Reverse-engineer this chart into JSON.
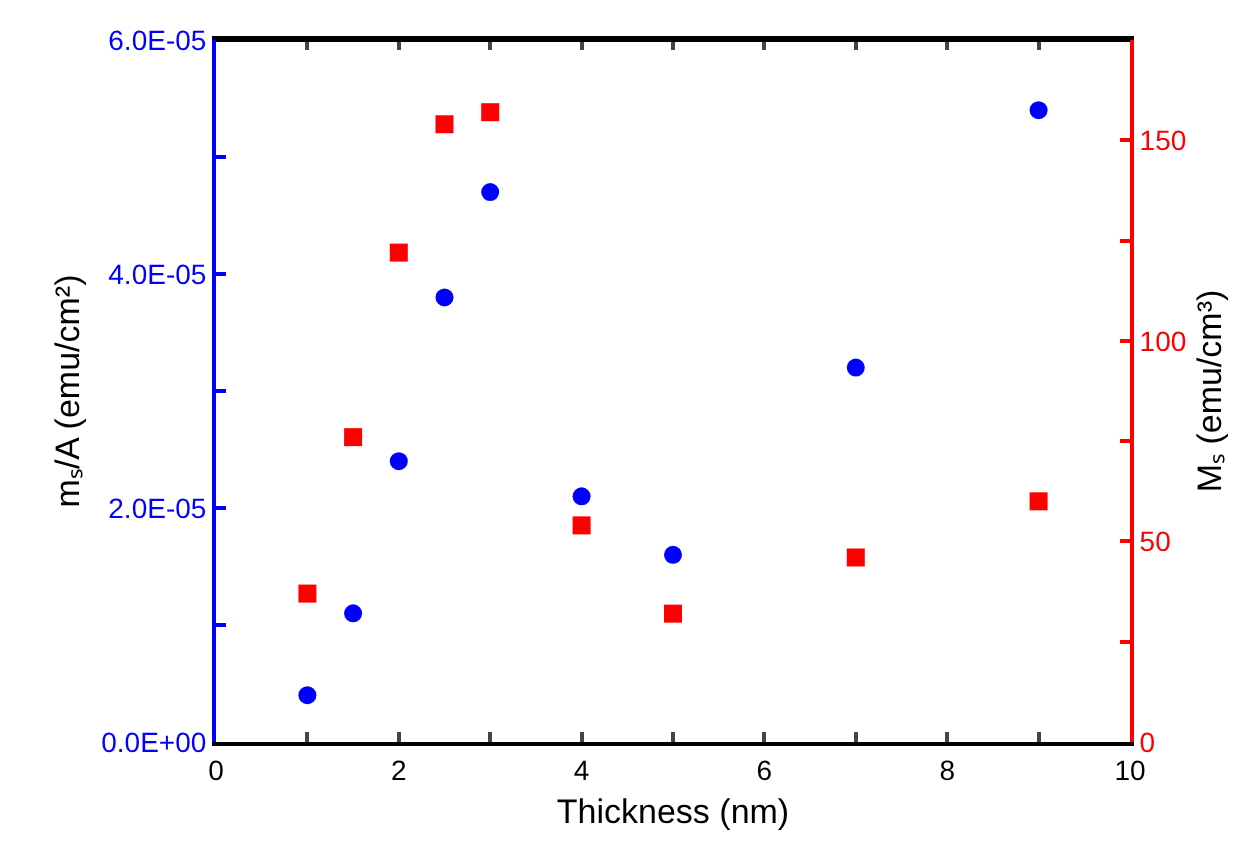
{
  "chart_data": {
    "type": "scatter",
    "xlabel": "Thickness (nm)",
    "ylabel": "mₛ/A (emu/cm²)",
    "y2label": "Mₛ (emu/cm³)",
    "x": [
      1,
      1.5,
      2,
      2.5,
      3,
      4,
      5,
      7,
      9
    ],
    "series": [
      {
        "color": "#0000ff",
        "marker": "circle",
        "values": [
          4e-06,
          1.1e-05,
          2.4e-05,
          3.8e-05,
          4.7e-05,
          2.1e-05,
          1.6e-05,
          3.2e-05,
          5.4e-05
        ]
      },
      {
        "color": "#ff0000",
        "marker": "square",
        "axis": "y2",
        "values": [
          37,
          76,
          122,
          154,
          157,
          54,
          32,
          46,
          60
        ]
      }
    ],
    "xlim": [
      0,
      10
    ],
    "xticks": [
      0,
      {
        "value": 1,
        "label": null
      },
      2,
      {
        "value": 3,
        "label": null
      },
      4,
      {
        "value": 5,
        "label": null
      },
      6,
      {
        "value": 7,
        "label": null
      },
      8,
      {
        "value": 9,
        "label": null
      },
      10
    ],
    "ylim": [
      0,
      6e-05
    ],
    "yticks": [
      {
        "value": 0,
        "label": "0.0E+00"
      },
      {
        "value": 1e-05,
        "label": null
      },
      {
        "value": 2e-05,
        "label": "2.0E-05"
      },
      {
        "value": 3e-05,
        "label": null
      },
      {
        "value": 4e-05,
        "label": "4.0E-05"
      },
      {
        "value": 5e-05,
        "label": null
      },
      {
        "value": 6e-05,
        "label": "6.0E-05"
      }
    ],
    "y2lim": [
      0,
      175
    ],
    "y2ticks": [
      0,
      {
        "value": 25,
        "label": null
      },
      50,
      {
        "value": 75,
        "label": null
      },
      100,
      {
        "value": 125,
        "label": null
      },
      150
    ]
  }
}
